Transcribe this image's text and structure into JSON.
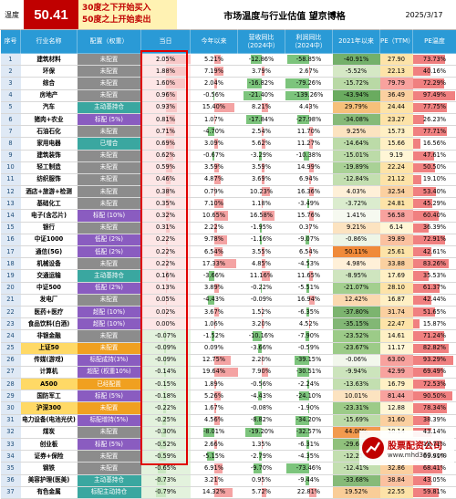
{
  "header": {
    "temp_label": "温度",
    "temp_value": "50.41",
    "rule_buy": "30度之下开始买入",
    "rule_sell": "50度之上开始卖出",
    "title": "市场温度与行业估值 望京博格",
    "date": "2025/3/17"
  },
  "columns": [
    "序号",
    "行业名称",
    "配置（权重）",
    "当日",
    "今年以来",
    "营收同比（2024中）",
    "利润同比（2024中）",
    "2021年以来",
    "PE（TTM）",
    "PE温度"
  ],
  "rows": [
    {
      "i": "1",
      "name": "建筑材料",
      "cfg": "未配置",
      "cfgc": "gray",
      "day": "2.05%",
      "dp": 1.0,
      "ytd": "5.21%",
      "yp": 0.3,
      "rev": "-12.86%",
      "rp": -0.45,
      "prof": "-58.85%",
      "pp": -0.9,
      "y21": "-40.91%",
      "y21c": "#74b06a",
      "pe": "27.90",
      "pec": "#fde3a8",
      "pet": "73.73%",
      "tp": 0.74
    },
    {
      "i": "2",
      "name": "环保",
      "cfg": "未配置",
      "cfgc": "gray",
      "day": "1.88%",
      "dp": 0.92,
      "ytd": "7.19%",
      "yp": 0.4,
      "rev": "3.79%",
      "rp": 0.12,
      "prof": "2.67%",
      "pp": 0.04,
      "y21": "-5.52%",
      "y21c": "#d5e8c5",
      "pe": "22.13",
      "pec": "#fde3a8",
      "pet": "40.16%",
      "tp": 0.4
    },
    {
      "i": "3",
      "name": "综合",
      "cfg": "未配置",
      "cfgc": "gray",
      "day": "1.60%",
      "dp": 0.78,
      "ytd": "2.04%",
      "yp": 0.12,
      "rev": "-16.82%",
      "rp": -0.58,
      "prof": "-79.26%",
      "pp": -1.0,
      "y21": "-15.72%",
      "y21c": "#b9d9a5",
      "pe": "79.79",
      "pec": "#f8a29e",
      "pet": "72.29%",
      "tp": 0.72
    },
    {
      "i": "4",
      "name": "房地产",
      "cfg": "未配置",
      "cfgc": "gray",
      "day": "0.96%",
      "dp": 0.47,
      "ytd": "-0.56%",
      "yp": -0.03,
      "rev": "-21.40%",
      "rp": -0.75,
      "prof": "-139.26%",
      "pp": -1.0,
      "y21": "-43.94%",
      "y21c": "#6aab5f",
      "pe": "36.49",
      "pec": "#fbd0a0",
      "pet": "97.49%",
      "tp": 0.97
    },
    {
      "i": "5",
      "name": "汽车",
      "cfg": "主动基持仓",
      "cfgc": "teal",
      "day": "0.93%",
      "dp": 0.45,
      "ytd": "15.40%",
      "yp": 0.85,
      "rev": "8.21%",
      "rp": 0.28,
      "prof": "4.43%",
      "pp": 0.06,
      "y21": "29.79%",
      "y21c": "#f6c07a",
      "pe": "24.44",
      "pec": "#fde3a8",
      "pet": "77.75%",
      "tp": 0.78
    },
    {
      "i": "6",
      "name": "猪肉+农业",
      "cfg": "标配 (5%)",
      "cfgc": "purple",
      "day": "0.81%",
      "dp": 0.4,
      "ytd": "1.07%",
      "yp": 0.06,
      "rev": "-17.84%",
      "rp": -0.62,
      "prof": "-27.98%",
      "pp": -0.5,
      "y21": "-34.08%",
      "y21c": "#86ba78",
      "pe": "23.27",
      "pec": "#fde3a8",
      "pet": "26.23%",
      "tp": 0.26
    },
    {
      "i": "7",
      "name": "石油石化",
      "cfg": "未配置",
      "cfgc": "gray",
      "day": "0.71%",
      "dp": 0.35,
      "ytd": "-4.70%",
      "yp": -0.26,
      "rev": "2.54%",
      "rp": 0.08,
      "prof": "11.70%",
      "pp": 0.16,
      "y21": "9.25%",
      "y21c": "#fce3c0",
      "pe": "15.73",
      "pec": "#fff0c4",
      "pet": "77.71%",
      "tp": 0.78
    },
    {
      "i": "8",
      "name": "家用电器",
      "cfg": "已增合",
      "cfgc": "teal",
      "day": "0.69%",
      "dp": 0.34,
      "ytd": "3.09%",
      "yp": 0.17,
      "rev": "5.62%",
      "rp": 0.19,
      "prof": "11.27%",
      "pp": 0.16,
      "y21": "-14.64%",
      "y21c": "#bcdba8",
      "pe": "15.66",
      "pec": "#fff0c4",
      "pet": "16.56%",
      "tp": 0.17
    },
    {
      "i": "9",
      "name": "建筑装饰",
      "cfg": "未配置",
      "cfgc": "gray",
      "day": "0.62%",
      "dp": 0.3,
      "ytd": "-0.67%",
      "yp": -0.04,
      "rev": "-3.29%",
      "rp": -0.11,
      "prof": "-10.38%",
      "pp": -0.2,
      "y21": "-15.01%",
      "y21c": "#bcdba8",
      "pe": "9.19",
      "pec": "#fff6d6",
      "pet": "47.61%",
      "tp": 0.48
    },
    {
      "i": "10",
      "name": "轻工制造",
      "cfg": "未配置",
      "cfgc": "gray",
      "day": "0.59%",
      "dp": 0.29,
      "ytd": "3.59%",
      "yp": 0.2,
      "rev": "3.59%",
      "rp": 0.12,
      "prof": "14.99%",
      "pp": 0.21,
      "y21": "-19.89%",
      "y21c": "#a9d196",
      "pe": "22.24",
      "pec": "#fde3a8",
      "pet": "50.50%",
      "tp": 0.5
    },
    {
      "i": "11",
      "name": "纺织服饰",
      "cfg": "未配置",
      "cfgc": "gray",
      "day": "0.46%",
      "dp": 0.22,
      "ytd": "4.87%",
      "yp": 0.27,
      "rev": "3.69%",
      "rp": 0.12,
      "prof": "6.94%",
      "pp": 0.1,
      "y21": "-12.84%",
      "y21c": "#c3dfb0",
      "pe": "21.12",
      "pec": "#fde3a8",
      "pet": "19.10%",
      "tp": 0.19
    },
    {
      "i": "12",
      "name": "酒店+旅游+检测",
      "cfg": "未配置",
      "cfgc": "gray",
      "day": "0.38%",
      "dp": 0.18,
      "ytd": "0.79%",
      "yp": 0.04,
      "rev": "10.23%",
      "rp": 0.35,
      "prof": "16.36%",
      "pp": 0.23,
      "y21": "4.03%",
      "y21c": "#fff0d8",
      "pe": "32.54",
      "pec": "#fbd0a0",
      "pet": "53.40%",
      "tp": 0.53
    },
    {
      "i": "13",
      "name": "基础化工",
      "cfg": "未配置",
      "cfgc": "gray",
      "day": "0.35%",
      "dp": 0.17,
      "ytd": "7.10%",
      "yp": 0.39,
      "rev": "1.18%",
      "rp": 0.04,
      "prof": "-3.49%",
      "pp": -0.06,
      "y21": "-3.72%",
      "y21c": "#dbecce",
      "pe": "24.81",
      "pec": "#fde3a8",
      "pet": "45.29%",
      "tp": 0.45
    },
    {
      "i": "14",
      "name": "电子(含芯片)",
      "cfg": "标配 (10%)",
      "cfgc": "purple",
      "day": "0.32%",
      "dp": 0.16,
      "ytd": "10.65%",
      "yp": 0.59,
      "rev": "16.58%",
      "rp": 0.57,
      "prof": "15.76%",
      "pp": 0.22,
      "y21": "1.41%",
      "y21c": "#f6f9f0",
      "pe": "56.58",
      "pec": "#f8a29e",
      "pet": "60.40%",
      "tp": 0.6
    },
    {
      "i": "15",
      "name": "银行",
      "cfg": "未配置",
      "cfgc": "gray",
      "day": "0.31%",
      "dp": 0.15,
      "ytd": "2.22%",
      "yp": 0.12,
      "rev": "-1.95%",
      "rp": -0.07,
      "prof": "0.37%",
      "pp": 0.01,
      "y21": "9.21%",
      "y21c": "#fce3c0",
      "pe": "6.14",
      "pec": "#fff6d6",
      "pet": "36.39%",
      "tp": 0.36
    },
    {
      "i": "16",
      "name": "中证1000",
      "cfg": "低配 (2%)",
      "cfgc": "purple",
      "day": "0.22%",
      "dp": 0.11,
      "ytd": "9.78%",
      "yp": 0.54,
      "rev": "-1.16%",
      "rp": -0.04,
      "prof": "-9.07%",
      "pp": -0.15,
      "y21": "-0.86%",
      "y21c": "#eef5e6",
      "pe": "39.89",
      "pec": "#fbc1a0",
      "pet": "72.91%",
      "tp": 0.73
    },
    {
      "i": "17",
      "name": "通信(5G)",
      "cfg": "低配 (2%)",
      "cfgc": "purple",
      "day": "0.22%",
      "dp": 0.11,
      "ytd": "6.54%",
      "yp": 0.36,
      "rev": "3.55%",
      "rp": 0.12,
      "prof": "6.54%",
      "pp": 0.09,
      "y21": "50.11%",
      "y21c": "#f08a3a",
      "pe": "25.61",
      "pec": "#fde3a8",
      "pet": "42.61%",
      "tp": 0.43
    },
    {
      "i": "18",
      "name": "机械设备",
      "cfg": "未配置",
      "cfgc": "gray",
      "day": "0.22%",
      "dp": 0.11,
      "ytd": "17.33%",
      "yp": 0.95,
      "rev": "4.85%",
      "rp": 0.17,
      "prof": "-4.53%",
      "pp": -0.07,
      "y21": "4.98%",
      "y21c": "#fff0d8",
      "pe": "33.88",
      "pec": "#fbd0a0",
      "pet": "83.26%",
      "tp": 0.83
    },
    {
      "i": "19",
      "name": "交通运输",
      "cfg": "主动基持仓",
      "cfgc": "teal",
      "day": "0.16%",
      "dp": 0.08,
      "ytd": "-3.66%",
      "yp": -0.2,
      "rev": "11.16%",
      "rp": 0.38,
      "prof": "11.65%",
      "pp": 0.16,
      "y21": "-8.95%",
      "y21c": "#cfe5bf",
      "pe": "17.69",
      "pec": "#fff0c4",
      "pet": "35.53%",
      "tp": 0.36
    },
    {
      "i": "20",
      "name": "中证500",
      "cfg": "低配 (2%)",
      "cfgc": "purple",
      "day": "0.13%",
      "dp": 0.06,
      "ytd": "3.89%",
      "yp": 0.21,
      "rev": "-0.22%",
      "rp": -0.01,
      "prof": "-5.51%",
      "pp": -0.09,
      "y21": "-21.07%",
      "y21c": "#a3cf8f",
      "pe": "28.10",
      "pec": "#fde3a8",
      "pet": "61.37%",
      "tp": 0.61
    },
    {
      "i": "21",
      "name": "发电厂",
      "cfg": "未配置",
      "cfgc": "gray",
      "day": "0.05%",
      "dp": 0.03,
      "ytd": "-4.43%",
      "yp": -0.24,
      "rev": "-0.09%",
      "rp": 0.0,
      "prof": "16.94%",
      "pp": 0.24,
      "y21": "12.42%",
      "y21c": "#fbd9b0",
      "pe": "16.87",
      "pec": "#fff0c4",
      "pet": "42.44%",
      "tp": 0.42
    },
    {
      "i": "22",
      "name": "医药+医疗",
      "cfg": "超配 (10%)",
      "cfgc": "purple",
      "day": "0.02%",
      "dp": 0.01,
      "ytd": "3.67%",
      "yp": 0.2,
      "rev": "1.52%",
      "rp": 0.05,
      "prof": "-6.35%",
      "pp": -0.1,
      "y21": "-37.80%",
      "y21c": "#7cb46f",
      "pe": "31.74",
      "pec": "#fbd0a0",
      "pet": "51.65%",
      "tp": 0.52
    },
    {
      "i": "23",
      "name": "食品饮料(白酒)",
      "cfg": "超配 (10%)",
      "cfgc": "purple",
      "day": "0.00%",
      "dp": 0.0,
      "ytd": "1.06%",
      "yp": 0.06,
      "rev": "3.20%",
      "rp": 0.11,
      "prof": "4.52%",
      "pp": 0.06,
      "y21": "-35.15%",
      "y21c": "#82b775",
      "pe": "22.47",
      "pec": "#fde3a8",
      "pet": "15.87%",
      "tp": 0.16
    },
    {
      "i": "24",
      "name": "非银金融",
      "cfg": "未配置",
      "cfgc": "gray",
      "day": "-0.07%",
      "dp": -0.04,
      "ytd": "-1.52%",
      "yp": -0.08,
      "rev": "-10.16%",
      "rp": -0.35,
      "prof": "-7.90%",
      "pp": -0.13,
      "y21": "-23.52%",
      "y21c": "#9ccb88",
      "pe": "14.61",
      "pec": "#fff0c4",
      "pet": "71.24%",
      "tp": 0.71
    },
    {
      "i": "25",
      "name": "上证50",
      "cfg": "未配置",
      "cfgc": "orange",
      "day": "-0.09%",
      "dp": -0.05,
      "ytd": "0.09%",
      "yp": 0.0,
      "rev": "-3.66%",
      "rp": -0.12,
      "prof": "-0.59%",
      "pp": -0.01,
      "y21": "-23.67%",
      "y21c": "#9ccb88",
      "pe": "11.17",
      "pec": "#fff6d6",
      "pet": "82.82%",
      "tp": 0.83
    },
    {
      "i": "26",
      "name": "传媒(游戏)",
      "cfg": "标配成持(3%)",
      "cfgc": "purple",
      "day": "-0.09%",
      "dp": -0.05,
      "ytd": "12.75%",
      "yp": 0.7,
      "rev": "2.20%",
      "rp": 0.07,
      "prof": "-39.15%",
      "pp": -0.6,
      "y21": "-0.06%",
      "y21c": "#f2f7ec",
      "pe": "63.00",
      "pec": "#f8a29e",
      "pet": "93.29%",
      "tp": 0.93
    },
    {
      "i": "27",
      "name": "计算机",
      "cfg": "超配 (权重10%)",
      "cfgc": "purple",
      "day": "-0.14%",
      "dp": -0.07,
      "ytd": "19.64%",
      "yp": 1.0,
      "rev": "7.90%",
      "rp": 0.27,
      "prof": "-30.51%",
      "pp": -0.48,
      "y21": "-9.94%",
      "y21c": "#cce4bc",
      "pe": "42.99",
      "pec": "#f8a29e",
      "pet": "69.49%",
      "tp": 0.69
    },
    {
      "i": "28",
      "name": "A500",
      "cfg": "已经配置",
      "cfgc": "orange",
      "day": "-0.15%",
      "dp": -0.07,
      "ytd": "1.89%",
      "yp": 0.1,
      "rev": "-0.56%",
      "rp": -0.02,
      "prof": "-2.24%",
      "pp": -0.04,
      "y21": "-13.63%",
      "y21c": "#c3dfb0",
      "pe": "16.79",
      "pec": "#fff0c4",
      "pet": "72.53%",
      "tp": 0.73
    },
    {
      "i": "29",
      "name": "国防军工",
      "cfg": "标配 (5%)",
      "cfgc": "purple",
      "day": "-0.18%",
      "dp": -0.09,
      "ytd": "5.26%",
      "yp": 0.29,
      "rev": "-4.43%",
      "rp": -0.15,
      "prof": "-24.10%",
      "pp": -0.4,
      "y21": "10.01%",
      "y21c": "#fce3c0",
      "pe": "81.44",
      "pec": "#f8a29e",
      "pet": "90.50%",
      "tp": 0.9
    },
    {
      "i": "30",
      "name": "沪深300",
      "cfg": "未配置",
      "cfgc": "orange",
      "day": "-0.22%",
      "dp": -0.11,
      "ytd": "1.67%",
      "yp": 0.09,
      "rev": "-0.08%",
      "rp": 0.0,
      "prof": "-1.90%",
      "pp": -0.03,
      "y21": "-23.31%",
      "y21c": "#9ccb88",
      "pe": "12.88",
      "pec": "#fff6d6",
      "pet": "78.34%",
      "tp": 0.78
    },
    {
      "i": "31",
      "name": "电力设备(电池光伏)",
      "cfg": "标配增持(5%)",
      "cfgc": "purple",
      "day": "-0.25%",
      "dp": -0.12,
      "ytd": "4.56%",
      "yp": 0.25,
      "rev": "-8.82%",
      "rp": -0.3,
      "prof": "-34.20%",
      "pp": -0.55,
      "y21": "-15.69%",
      "y21c": "#bcdba8",
      "pe": "31.60",
      "pec": "#fbd0a0",
      "pet": "38.39%",
      "tp": 0.38
    },
    {
      "i": "32",
      "name": "煤炭",
      "cfg": "未配置",
      "cfgc": "gray",
      "day": "-0.30%",
      "dp": -0.15,
      "ytd": "-8.01%",
      "yp": -0.44,
      "rev": "-19.20%",
      "rp": -0.66,
      "prof": "-32.57%",
      "pp": -0.52,
      "y21": "44.00%",
      "y21c": "#f29a4e",
      "pe": "10.14",
      "pec": "#fff6d6",
      "pet": "43.14%",
      "tp": 0.43
    },
    {
      "i": "33",
      "name": "创业板",
      "cfg": "标配 (5%)",
      "cfgc": "purple",
      "day": "-0.52%",
      "dp": -0.25,
      "ytd": "2.66%",
      "yp": 0.15,
      "rev": "1.35%",
      "rp": 0.05,
      "prof": "-6.31%",
      "pp": -0.1,
      "y21": "-29.60%",
      "y21c": "#90c17c",
      "pe": "31.66",
      "pec": "#fbd0a0",
      "pet": "18.71%",
      "tp": 0.19
    },
    {
      "i": "34",
      "name": "证券+保险",
      "cfg": "未配置",
      "cfgc": "gray",
      "day": "-0.59%",
      "dp": -0.29,
      "ytd": "-5.15%",
      "yp": -0.28,
      "rev": "-2.79%",
      "rp": -0.1,
      "prof": "-4.35%",
      "pp": -0.07,
      "y21": "-12.25%",
      "y21c": "#c3dfb0",
      "pe": "17.44",
      "pec": "#fff0c4",
      "pet": "69.91%",
      "tp": 0.7
    },
    {
      "i": "35",
      "name": "钢铁",
      "cfg": "未配置",
      "cfgc": "gray",
      "day": "-0.65%",
      "dp": -0.32,
      "ytd": "6.91%",
      "yp": 0.38,
      "rev": "-9.70%",
      "rp": -0.33,
      "prof": "-73.46%",
      "pp": -0.95,
      "y21": "-12.41%",
      "y21c": "#c3dfb0",
      "pe": "32.86",
      "pec": "#fbd0a0",
      "pet": "68.41%",
      "tp": 0.68
    },
    {
      "i": "36",
      "name": "美容护理(医美)",
      "cfg": "主动基持仓",
      "cfgc": "teal",
      "day": "-0.73%",
      "dp": -0.36,
      "ytd": "3.21%",
      "yp": 0.18,
      "rev": "0.95%",
      "rp": 0.03,
      "prof": "-9.44%",
      "pp": -0.15,
      "y21": "-33.68%",
      "y21c": "#86ba78",
      "pe": "38.84",
      "pec": "#fbc1a0",
      "pet": "43.05%",
      "tp": 0.43
    },
    {
      "i": "37",
      "name": "有色金属",
      "cfg": "标配主动持仓",
      "cfgc": "teal",
      "day": "-0.79%",
      "dp": -0.39,
      "ytd": "14.32%",
      "yp": 0.79,
      "rev": "5.72%",
      "rp": 0.2,
      "prof": "22.81%",
      "pp": 0.32,
      "y21": "19.52%",
      "y21c": "#f9cd98",
      "pe": "22.55",
      "pec": "#fde3a8",
      "pet": "59.81%",
      "tp": 0.6
    }
  ],
  "colors": {
    "header_blue": "#2a9ad6",
    "positive_bar": "#f4a3a3",
    "negative_bar": "#7cc47c",
    "day_up": "#f8c7c7",
    "day_down": "#c8e6c0",
    "temp_bar": "#f08080",
    "cfg_gray": "#8c8c8c",
    "cfg_purple": "#8a5cc0",
    "cfg_teal": "#3aa7a0",
    "cfg_orange": "#f0a020"
  },
  "watermark": {
    "name": "股票配资公司",
    "url": "www.mhd360.com"
  }
}
